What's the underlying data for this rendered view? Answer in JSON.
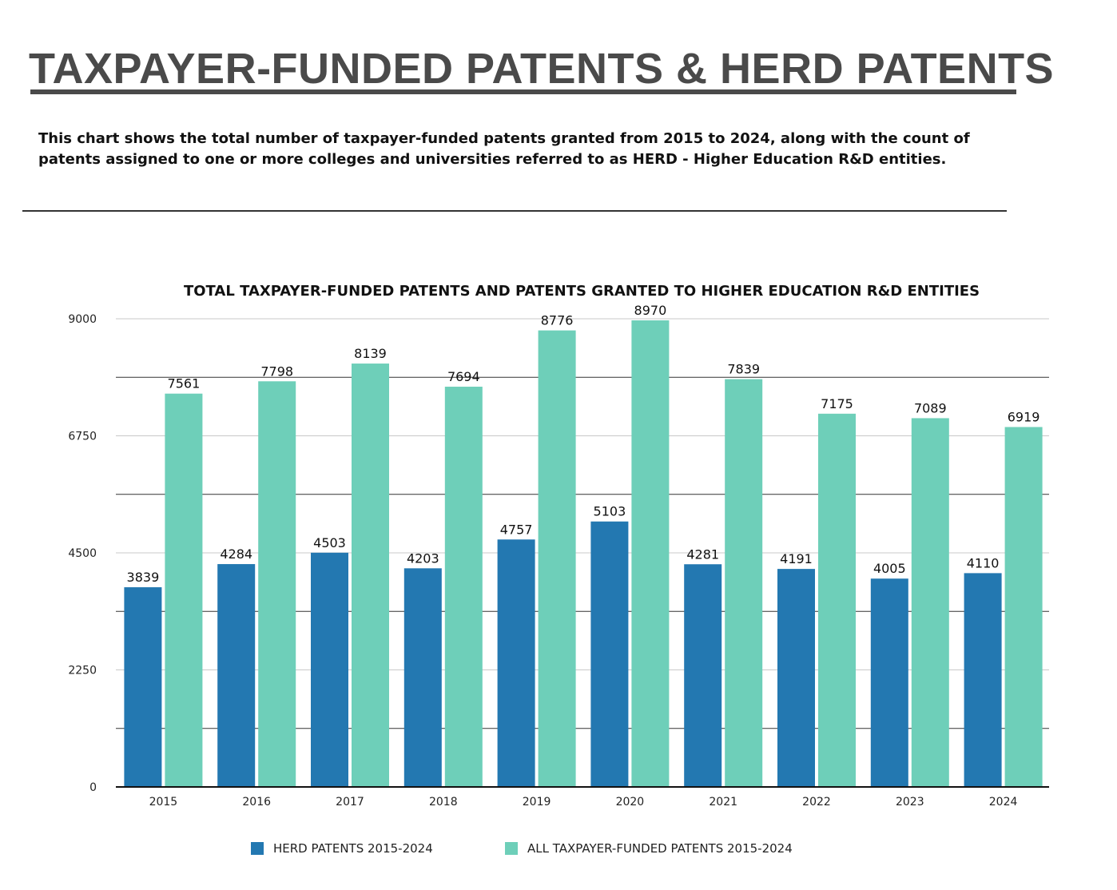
{
  "header": {
    "title": "TAXPAYER-FUNDED PATENTS & HERD PATENTS",
    "description": "This chart shows the total number of taxpayer-funded patents granted from 2015 to 2024, along with the count of patents assigned to one or more colleges and universities referred to as HERD - Higher Education R&D entities."
  },
  "colors": {
    "herd": "#2378b1",
    "all": "#6ecfb9",
    "title": "#4a4a4a"
  },
  "chart_data": {
    "type": "bar",
    "title": "TOTAL TAXPAYER-FUNDED PATENTS AND PATENTS GRANTED TO HIGHER EDUCATION R&D ENTITIES",
    "categories": [
      "2015",
      "2016",
      "2017",
      "2018",
      "2019",
      "2020",
      "2021",
      "2022",
      "2023",
      "2024"
    ],
    "series": [
      {
        "name": "HERD PATENTS 2015-2024",
        "values": [
          3839,
          4284,
          4503,
          4203,
          4757,
          5103,
          4281,
          4191,
          4005,
          4110
        ]
      },
      {
        "name": "ALL TAXPAYER-FUNDED PATENTS 2015-2024",
        "values": [
          7561,
          7798,
          8139,
          7694,
          8776,
          8970,
          7839,
          7175,
          7089,
          6919
        ]
      }
    ],
    "yticks": [
      "0",
      "2250",
      "4500",
      "6750",
      "9000"
    ],
    "ylim": [
      0,
      9000
    ],
    "xlabel": "",
    "ylabel": "",
    "legend": "bottom-center"
  }
}
